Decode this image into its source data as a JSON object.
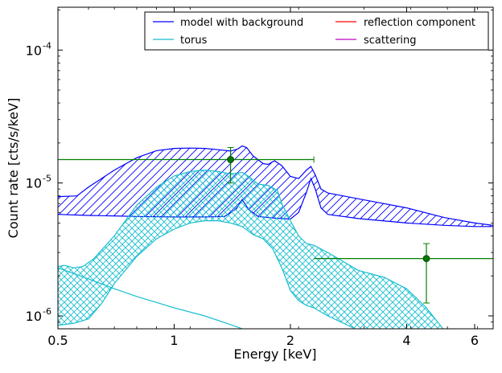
{
  "chart_data": {
    "type": "line",
    "xlabel": "Energy [keV]",
    "ylabel": "Count rate [cts/s/keV]",
    "x_scale": "log",
    "y_scale": "log",
    "xlim": [
      0.5,
      6.7
    ],
    "ylim": [
      8e-07,
      0.00021
    ],
    "x_ticks": [
      {
        "value": 0.5,
        "label": "0.5"
      },
      {
        "value": 1,
        "label": "1"
      },
      {
        "value": 2,
        "label": "2"
      },
      {
        "value": 4,
        "label": "4"
      },
      {
        "value": 6,
        "label": "6"
      }
    ],
    "y_ticks": [
      {
        "value": 1e-06,
        "mantissa": "10",
        "exponent": "-6"
      },
      {
        "value": 1e-05,
        "mantissa": "10",
        "exponent": "-5"
      },
      {
        "value": 0.0001,
        "mantissa": "10",
        "exponent": "-4"
      }
    ],
    "legend": {
      "placement": "top-right",
      "columns": 2,
      "entries": [
        {
          "label": "model with background",
          "color": "#0000ff"
        },
        {
          "label": "reflection component",
          "color": "#ff0000"
        },
        {
          "label": "torus",
          "color": "#17becf"
        },
        {
          "label": "scattering",
          "color": "#bf00bf"
        }
      ]
    },
    "bands": [
      {
        "name": "model with background",
        "color": "#0000ff",
        "hatch": "diagonal",
        "upper": [
          [
            0.5,
            7.9e-06
          ],
          [
            0.56,
            8e-06
          ],
          [
            0.6,
            9.3e-06
          ],
          [
            0.7,
            1.25e-05
          ],
          [
            0.8,
            1.55e-05
          ],
          [
            0.9,
            1.75e-05
          ],
          [
            1.0,
            1.82e-05
          ],
          [
            1.1,
            1.83e-05
          ],
          [
            1.2,
            1.82e-05
          ],
          [
            1.3,
            1.78e-05
          ],
          [
            1.4,
            1.74e-05
          ],
          [
            1.46,
            1.8e-05
          ],
          [
            1.5,
            1.9e-05
          ],
          [
            1.54,
            1.85e-05
          ],
          [
            1.6,
            1.6e-05
          ],
          [
            1.7,
            1.4e-05
          ],
          [
            1.75,
            1.38e-05
          ],
          [
            1.82,
            1.47e-05
          ],
          [
            1.9,
            1.35e-05
          ],
          [
            2.0,
            1.12e-05
          ],
          [
            2.1,
            1.08e-05
          ],
          [
            2.2,
            1.25e-05
          ],
          [
            2.26,
            1.33e-05
          ],
          [
            2.32,
            1.15e-05
          ],
          [
            2.4,
            9e-06
          ],
          [
            2.5,
            8.4e-06
          ],
          [
            3.0,
            7.6e-06
          ],
          [
            4.0,
            6.5e-06
          ],
          [
            5.0,
            5.5e-06
          ],
          [
            6.0,
            5e-06
          ],
          [
            6.7,
            4.8e-06
          ]
        ],
        "lower": [
          [
            0.5,
            5.8e-06
          ],
          [
            0.6,
            5.7e-06
          ],
          [
            0.7,
            5.65e-06
          ],
          [
            0.8,
            5.6e-06
          ],
          [
            1.0,
            5.55e-06
          ],
          [
            1.2,
            5.55e-06
          ],
          [
            1.35,
            5.6e-06
          ],
          [
            1.45,
            6.4e-06
          ],
          [
            1.5,
            7.5e-06
          ],
          [
            1.56,
            6.3e-06
          ],
          [
            1.65,
            5.6e-06
          ],
          [
            1.8,
            5.45e-06
          ],
          [
            2.0,
            5.35e-06
          ],
          [
            2.1,
            6e-06
          ],
          [
            2.2,
            8.5e-06
          ],
          [
            2.26,
            1.08e-05
          ],
          [
            2.32,
            9e-06
          ],
          [
            2.4,
            6.5e-06
          ],
          [
            2.5,
            5.8e-06
          ],
          [
            3.0,
            5.4e-06
          ],
          [
            4.0,
            5e-06
          ],
          [
            5.0,
            4.8e-06
          ],
          [
            6.0,
            4.7e-06
          ],
          [
            6.7,
            4.7e-06
          ]
        ]
      },
      {
        "name": "torus",
        "color": "#17becf",
        "hatch": "cross",
        "upper": [
          [
            0.5,
            2.35e-06
          ],
          [
            0.52,
            2.4e-06
          ],
          [
            0.55,
            2.3e-06
          ],
          [
            0.58,
            2.35e-06
          ],
          [
            0.62,
            2.7e-06
          ],
          [
            0.7,
            4e-06
          ],
          [
            0.8,
            6.8e-06
          ],
          [
            0.9,
            9.3e-06
          ],
          [
            1.0,
            1.13e-05
          ],
          [
            1.1,
            1.22e-05
          ],
          [
            1.2,
            1.25e-05
          ],
          [
            1.3,
            1.22e-05
          ],
          [
            1.4,
            1.17e-05
          ],
          [
            1.5,
            1.2e-05
          ],
          [
            1.56,
            1.12e-05
          ],
          [
            1.65,
            9.8e-06
          ],
          [
            1.75,
            9.6e-06
          ],
          [
            1.85,
            8.8e-06
          ],
          [
            1.9,
            7e-06
          ],
          [
            2.0,
            5.2e-06
          ],
          [
            2.1,
            4e-06
          ],
          [
            2.2,
            3.5e-06
          ],
          [
            2.3,
            3.4e-06
          ],
          [
            2.5,
            3e-06
          ],
          [
            3.0,
            2.2e-06
          ],
          [
            3.5,
            1.95e-06
          ],
          [
            4.0,
            1.6e-06
          ],
          [
            4.5,
            1.15e-06
          ],
          [
            5.0,
            7.8e-07
          ]
        ],
        "lower": [
          [
            0.5,
            8.5e-07
          ],
          [
            0.55,
            8.8e-07
          ],
          [
            0.6,
            9.5e-07
          ],
          [
            0.65,
            1.25e-06
          ],
          [
            0.7,
            1.75e-06
          ],
          [
            0.8,
            2.8e-06
          ],
          [
            0.9,
            3.8e-06
          ],
          [
            1.0,
            4.5e-06
          ],
          [
            1.1,
            5e-06
          ],
          [
            1.2,
            5.2e-06
          ],
          [
            1.3,
            5.2e-06
          ],
          [
            1.4,
            5e-06
          ],
          [
            1.5,
            4.7e-06
          ],
          [
            1.6,
            4.1e-06
          ],
          [
            1.7,
            3.8e-06
          ],
          [
            1.8,
            3.2e-06
          ],
          [
            1.9,
            2.3e-06
          ],
          [
            2.0,
            1.55e-06
          ],
          [
            2.1,
            1.3e-06
          ],
          [
            2.2,
            1.2e-06
          ],
          [
            2.3,
            1.15e-06
          ],
          [
            2.5,
            1e-06
          ],
          [
            3.0,
            7.8e-07
          ]
        ]
      }
    ],
    "lines": [
      {
        "name": "torus lower edge",
        "color": "#17becf",
        "points": [
          [
            0.5,
            2.3e-06
          ],
          [
            0.6,
            1.9e-06
          ],
          [
            0.7,
            1.6e-06
          ],
          [
            0.8,
            1.4e-06
          ],
          [
            1.0,
            1.15e-06
          ],
          [
            1.2,
            1e-06
          ],
          [
            1.4,
            8.6e-07
          ],
          [
            1.5,
            8e-07
          ]
        ]
      }
    ],
    "data_points": [
      {
        "x": 1.4,
        "y": 1.5e-05,
        "x_err": [
          0.5,
          2.3
        ],
        "y_err": [
          1e-05,
          1.85e-05
        ]
      },
      {
        "x": 4.5,
        "y": 2.7e-06,
        "x_err": [
          2.3,
          6.7
        ],
        "y_err": [
          1.25e-06,
          3.5e-06
        ]
      }
    ],
    "data_point_color": "#008000",
    "data_point_marker": "#007700"
  }
}
